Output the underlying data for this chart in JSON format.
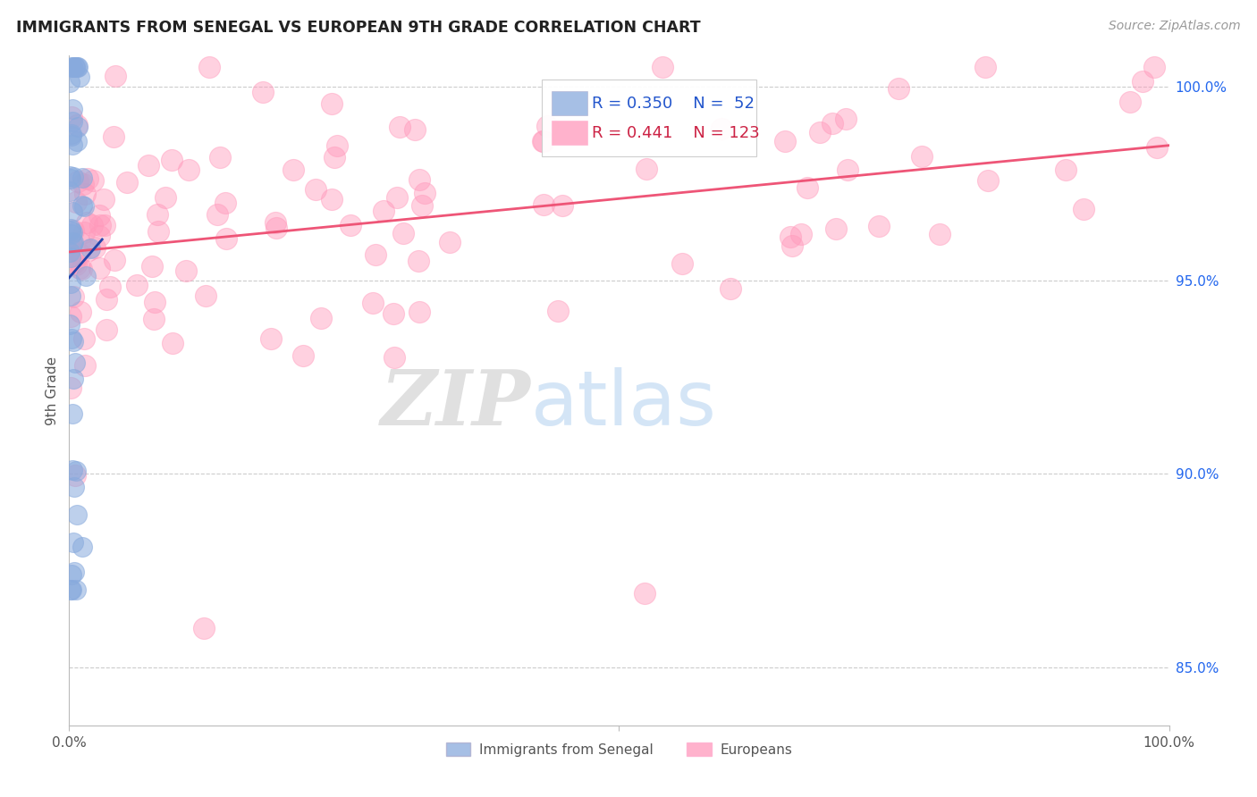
{
  "title": "IMMIGRANTS FROM SENEGAL VS EUROPEAN 9TH GRADE CORRELATION CHART",
  "source_text": "Source: ZipAtlas.com",
  "ylabel": "9th Grade",
  "legend_blue_label": "Immigrants from Senegal",
  "legend_pink_label": "Europeans",
  "R_blue": 0.35,
  "N_blue": 52,
  "R_pink": 0.441,
  "N_pink": 123,
  "blue_color": "#88AADD",
  "pink_color": "#FF99BB",
  "blue_line_color": "#2244AA",
  "pink_line_color": "#EE5577",
  "background_color": "#FFFFFF",
  "grid_color": "#CCCCCC",
  "title_color": "#222222",
  "watermark_zip": "ZIP",
  "watermark_atlas": "atlas",
  "xlim": [
    0.0,
    1.0
  ],
  "ylim": [
    0.835,
    1.008
  ],
  "y_ticks": [
    0.85,
    0.9,
    0.95,
    1.0
  ],
  "y_tick_labels": [
    "85.0%",
    "90.0%",
    "95.0%",
    "100.0%"
  ],
  "x_ticks": [
    0.0,
    0.5,
    1.0
  ],
  "x_tick_labels": [
    "0.0%",
    "",
    "100.0%"
  ]
}
